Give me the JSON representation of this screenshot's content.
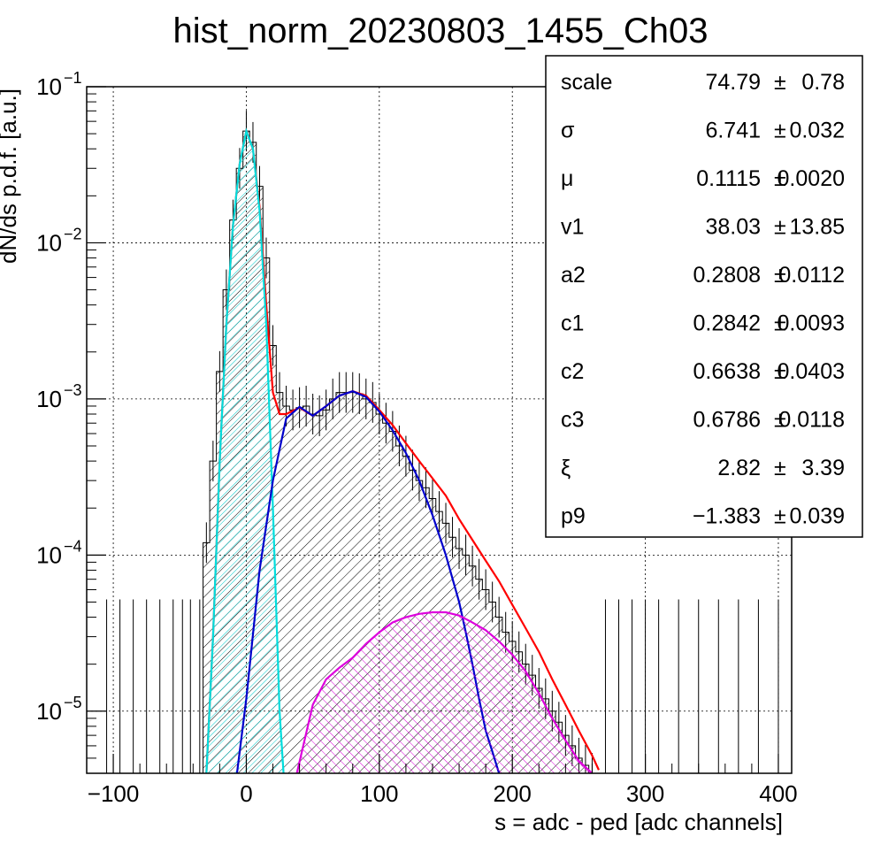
{
  "chart_data": {
    "type": "histogram",
    "title": "hist_norm_20230803_1455_Ch03",
    "xlabel": "s = adc - ped [adc channels]",
    "ylabel": "dN/ds p.d.f. [a.u.]",
    "xlim": [
      -120,
      410
    ],
    "ylim": [
      4e-06,
      0.1
    ],
    "yscale": "log",
    "grid": true,
    "x_ticks": [
      {
        "value": -100,
        "label": "−100"
      },
      {
        "value": 0,
        "label": "0"
      },
      {
        "value": 100,
        "label": "100"
      },
      {
        "value": 200,
        "label": "200"
      },
      {
        "value": 300,
        "label": "300"
      },
      {
        "value": 400,
        "label": "400"
      }
    ],
    "y_ticks": [
      {
        "value": 1e-05,
        "base": "10",
        "exp": "−5"
      },
      {
        "value": 0.0001,
        "base": "10",
        "exp": "−4"
      },
      {
        "value": 0.001,
        "base": "10",
        "exp": "−3"
      },
      {
        "value": 0.01,
        "base": "10",
        "exp": "−2"
      },
      {
        "value": 0.1,
        "base": "10",
        "exp": "−1"
      }
    ],
    "histogram": {
      "color": "#000000",
      "x": [
        -30,
        -25,
        -20,
        -15,
        -10,
        -5,
        0,
        5,
        10,
        15,
        20,
        25,
        30,
        35,
        40,
        45,
        50,
        55,
        60,
        65,
        70,
        75,
        80,
        85,
        90,
        95,
        100,
        105,
        110,
        115,
        120,
        125,
        130,
        135,
        140,
        145,
        150,
        155,
        160,
        165,
        170,
        175,
        180,
        185,
        190,
        195,
        200,
        205,
        210,
        215,
        220,
        225,
        230,
        235,
        240,
        245,
        250,
        255,
        260
      ],
      "values": [
        0.00012,
        0.0004,
        0.0015,
        0.005,
        0.014,
        0.03,
        0.052,
        0.044,
        0.023,
        0.008,
        0.0022,
        0.0011,
        0.0009,
        0.00085,
        0.00088,
        0.0009,
        0.0008,
        0.00078,
        0.00085,
        0.001,
        0.0011,
        0.0011,
        0.0011,
        0.00108,
        0.001,
        0.00095,
        0.0008,
        0.0007,
        0.00062,
        0.0005,
        0.00043,
        0.00035,
        0.0003,
        0.00027,
        0.00023,
        0.00019,
        0.00016,
        0.00013,
        0.00011,
        0.0001,
        8.5e-05,
        7e-05,
        6e-05,
        5e-05,
        4e-05,
        3.2e-05,
        2.8e-05,
        2.4e-05,
        2e-05,
        1.7e-05,
        1.4e-05,
        1.2e-05,
        1e-05,
        8.5e-06,
        7e-06,
        6e-06,
        5e-06,
        4.5e-06,
        4e-06
      ]
    },
    "series": [
      {
        "color": "#ff0000",
        "x": [
          -30,
          -25,
          -20,
          -15,
          -10,
          -5,
          0,
          5,
          10,
          15,
          20,
          25,
          30,
          40,
          50,
          60,
          70,
          80,
          90,
          100,
          110,
          120,
          130,
          140,
          150,
          160,
          170,
          180,
          190,
          200,
          210,
          220,
          230,
          240,
          250,
          260,
          265
        ],
        "values": [
          4e-06,
          3e-05,
          0.0004,
          0.003,
          0.013,
          0.032,
          0.052,
          0.04,
          0.017,
          0.004,
          0.0011,
          0.0008,
          0.0008,
          0.00088,
          0.00078,
          0.0009,
          0.00105,
          0.00112,
          0.00105,
          0.00085,
          0.00068,
          0.00052,
          0.0004,
          0.00031,
          0.00024,
          0.00017,
          0.000125,
          9.2e-05,
          6.8e-05,
          4.8e-05,
          3.4e-05,
          2.4e-05,
          1.6e-05,
          1.1e-05,
          7.5e-06,
          5.2e-06,
          4.2e-06
        ]
      },
      {
        "color": "#00dddd",
        "fill": true,
        "x": [
          -30,
          -25,
          -20,
          -15,
          -10,
          -5,
          0,
          5,
          10,
          15,
          20,
          25,
          28
        ],
        "values": [
          4e-06,
          3e-05,
          0.0004,
          0.003,
          0.013,
          0.032,
          0.052,
          0.04,
          0.016,
          0.003,
          0.0002,
          1e-05,
          4e-06
        ]
      },
      {
        "color": "#0000cc",
        "x": [
          -7,
          0,
          10,
          20,
          30,
          40,
          50,
          60,
          70,
          80,
          90,
          100,
          110,
          120,
          130,
          140,
          150,
          160,
          165,
          170,
          175,
          180,
          185,
          190
        ],
        "values": [
          4e-06,
          1.2e-05,
          8e-05,
          0.0003,
          0.00075,
          0.00089,
          0.00078,
          0.0009,
          0.00105,
          0.00112,
          0.00103,
          0.00083,
          0.00063,
          0.00045,
          0.0003,
          0.00018,
          0.0001,
          5e-05,
          3.2e-05,
          2e-05,
          1.2e-05,
          7.5e-06,
          5.5e-06,
          4e-06
        ]
      },
      {
        "color": "#dd00dd",
        "fill": true,
        "x": [
          38,
          50,
          60,
          70,
          80,
          90,
          100,
          110,
          120,
          130,
          140,
          150,
          160,
          170,
          180,
          190,
          200,
          210,
          220,
          230,
          240,
          250,
          260,
          258
        ],
        "values": [
          4e-06,
          1.1e-05,
          1.6e-05,
          1.9e-05,
          2.2e-05,
          2.7e-05,
          3.2e-05,
          3.7e-05,
          4e-05,
          4.2e-05,
          4.3e-05,
          4.3e-05,
          4.1e-05,
          3.7e-05,
          3.3e-05,
          2.8e-05,
          2.3e-05,
          1.8e-05,
          1.3e-05,
          9e-06,
          6.5e-06,
          4.8e-06,
          4e-06,
          4e-06
        ]
      }
    ],
    "stats": [
      {
        "name": "scale",
        "value": "74.79",
        "err": "0.78"
      },
      {
        "name": "σ",
        "value": "6.741",
        "err": "0.032"
      },
      {
        "name": "μ",
        "value": "0.1115",
        "err": "0.0020"
      },
      {
        "name": "v1",
        "value": "38.03",
        "err": "13.85"
      },
      {
        "name": "a2",
        "value": "0.2808",
        "err": "0.0112"
      },
      {
        "name": "c1",
        "value": "0.2842",
        "err": "0.0093"
      },
      {
        "name": "c2",
        "value": "0.6638",
        "err": "0.0403"
      },
      {
        "name": "c3",
        "value": "0.6786",
        "err": "0.0118"
      },
      {
        "name": "ξ",
        "value": "2.82",
        "err": "3.39"
      },
      {
        "name": "p9",
        "value": "−1.383",
        "err": "0.039"
      }
    ],
    "pm": "±"
  }
}
